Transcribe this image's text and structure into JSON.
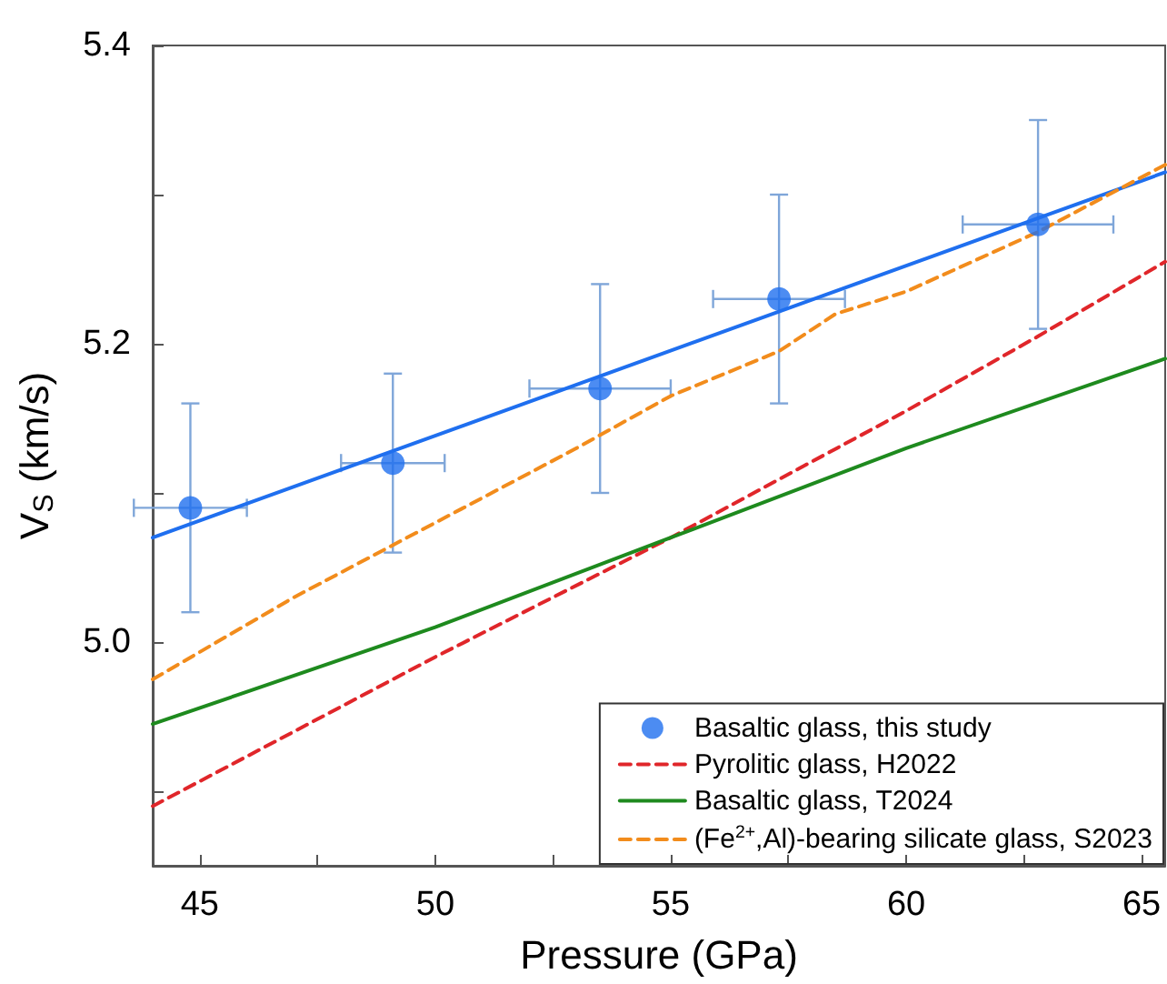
{
  "chart_data": {
    "type": "scatter",
    "xlabel": "Pressure (GPa)",
    "ylabel": "V$_{S}$ (km/s)",
    "xlim": [
      44,
      65.5
    ],
    "ylim": [
      4.85,
      5.4
    ],
    "xticks": [
      45,
      {
        "value": 47.5,
        "label": null
      },
      50,
      {
        "value": 52.5,
        "label": null
      },
      55,
      {
        "value": 57.5,
        "label": null
      },
      60,
      {
        "value": 62.5,
        "label": null
      },
      65
    ],
    "yticks": [
      {
        "value": 4.9,
        "label": null
      },
      {
        "value": 5.0,
        "label": "5.0"
      },
      {
        "value": 5.1,
        "label": null
      },
      {
        "value": 5.2,
        "label": "5.2"
      },
      {
        "value": 5.3,
        "label": null
      },
      {
        "value": 5.4,
        "label": "5.4"
      }
    ],
    "grid": false,
    "legend": "bottom right",
    "series": [
      {
        "name": "Basaltic glass, this study",
        "type": "scatter",
        "marker": "circle",
        "color": "#1f6fef",
        "x": [
          44.8,
          49.1,
          53.5,
          57.3,
          62.8
        ],
        "values": [
          5.09,
          5.12,
          5.17,
          5.23,
          5.28
        ],
        "errors": [
          0.07,
          0.06,
          0.07,
          0.07,
          0.07
        ],
        "xerrors": [
          1.2,
          1.1,
          1.5,
          1.4,
          1.6
        ]
      },
      {
        "type": "line",
        "line_style": "solid",
        "color": "#1f6fef",
        "x": [
          44,
          65.5
        ],
        "values": [
          5.07,
          5.315
        ]
      },
      {
        "name": "Pyrolitic glass, H2022",
        "type": "line",
        "line_style": "dashed",
        "color": "#e0262a",
        "x": [
          44,
          50,
          55,
          60,
          62.8,
          65.5
        ],
        "values": [
          4.89,
          4.99,
          5.07,
          5.155,
          5.205,
          5.255
        ]
      },
      {
        "name": "Basaltic glass, T2024",
        "type": "line",
        "line_style": "solid",
        "color": "#1e8a1e",
        "x": [
          44,
          50,
          55,
          60,
          65.5
        ],
        "values": [
          4.945,
          5.01,
          5.07,
          5.13,
          5.19
        ]
      },
      {
        "name": "(Fe$^{2+}$,Al)-bearing silicate glass, S2023",
        "type": "line",
        "line_style": "dashed",
        "color": "#f28c1c",
        "x": [
          44,
          47,
          50,
          53,
          55,
          57.3,
          58.5,
          60,
          62.8,
          65.5
        ],
        "values": [
          4.975,
          5.03,
          5.08,
          5.13,
          5.165,
          5.195,
          5.22,
          5.235,
          5.275,
          5.32
        ]
      }
    ]
  }
}
